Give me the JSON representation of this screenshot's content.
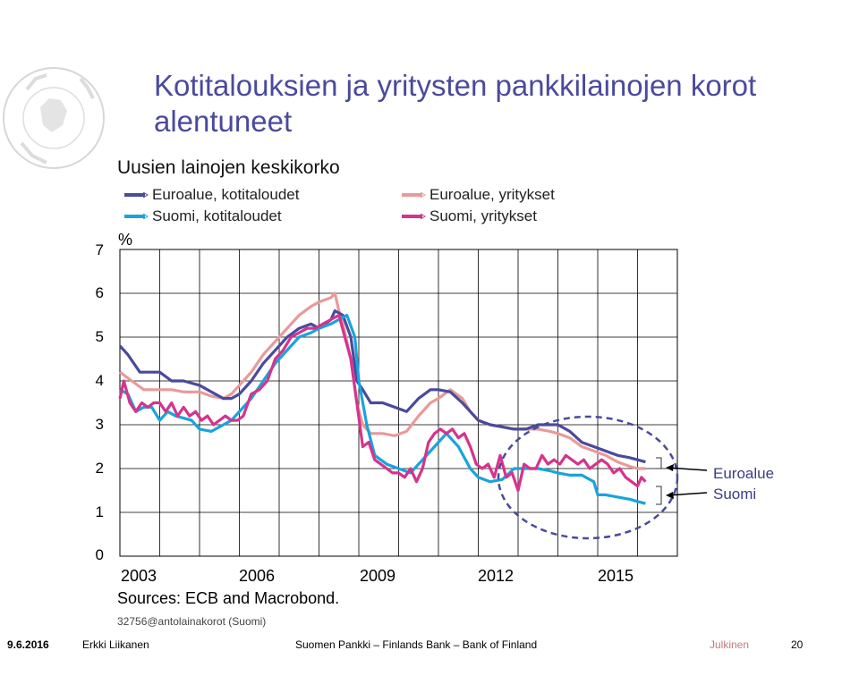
{
  "slide": {
    "title": "Kotitalouksien ja yritysten pankkilainojen korot alentuneet",
    "subtitle": "Uusien lainojen keskikorko",
    "unit": "%",
    "sources": "Sources: ECB and Macrobond.",
    "code": "32756@antolainakorot (Suomi)",
    "right_labels": [
      "Euroalue",
      "Suomi"
    ]
  },
  "footer": {
    "date": "9.6.2016",
    "author": "Erkki Liikanen",
    "org": "Suomen Pankki – Finlands Bank – Bank of Finland",
    "classification": "Julkinen",
    "page": "20"
  },
  "colors": {
    "title": "#4a4a9c",
    "euro_households": "#4a4a9c",
    "fin_households": "#1aa3dc",
    "euro_companies": "#e89a9a",
    "fin_companies": "#d6338c",
    "classification": "#c07b7b",
    "ellipse": "#4a4a9c"
  },
  "chart_data": {
    "type": "line",
    "title": "Uusien lainojen keskikorko",
    "ylabel": "%",
    "ylim": [
      0,
      7
    ],
    "yticks": [
      0,
      1,
      2,
      3,
      4,
      5,
      6,
      7
    ],
    "xlim": [
      2003.0,
      2017.0
    ],
    "xticks": [
      2003,
      2006,
      2009,
      2012,
      2015
    ],
    "grid": true,
    "legend_position": "top",
    "series": [
      {
        "name": "Euroalue, kotitaloudet",
        "color_key": "euro_households",
        "x": [
          2003.0,
          2003.2,
          2003.5,
          2003.7,
          2004.0,
          2004.3,
          2004.6,
          2005.0,
          2005.3,
          2005.6,
          2005.8,
          2006.0,
          2006.3,
          2006.6,
          2006.9,
          2007.2,
          2007.5,
          2007.8,
          2008.0,
          2008.3,
          2008.4,
          2008.6,
          2008.8,
          2008.95,
          2009.1,
          2009.3,
          2009.6,
          2009.9,
          2010.2,
          2010.5,
          2010.8,
          2011.0,
          2011.3,
          2011.6,
          2011.8,
          2012.0,
          2012.3,
          2012.6,
          2012.9,
          2013.2,
          2013.5,
          2013.8,
          2014.0,
          2014.3,
          2014.6,
          2014.9,
          2015.2,
          2015.5,
          2015.8,
          2016.0,
          2016.2
        ],
        "y": [
          4.8,
          4.6,
          4.2,
          4.2,
          4.2,
          4.0,
          4.0,
          3.9,
          3.75,
          3.6,
          3.6,
          3.7,
          4.0,
          4.4,
          4.7,
          5.0,
          5.2,
          5.3,
          5.2,
          5.4,
          5.6,
          5.5,
          5.0,
          4.0,
          3.8,
          3.5,
          3.5,
          3.4,
          3.3,
          3.6,
          3.8,
          3.8,
          3.75,
          3.5,
          3.3,
          3.1,
          3.0,
          2.95,
          2.9,
          2.9,
          3.0,
          3.0,
          3.0,
          2.85,
          2.6,
          2.5,
          2.4,
          2.3,
          2.25,
          2.2,
          2.15
        ]
      },
      {
        "name": "Euroalue, yritykset",
        "color_key": "euro_companies",
        "x": [
          2003.0,
          2003.3,
          2003.6,
          2004.0,
          2004.3,
          2004.6,
          2005.0,
          2005.3,
          2005.6,
          2005.8,
          2006.0,
          2006.3,
          2006.6,
          2006.9,
          2007.2,
          2007.5,
          2007.8,
          2008.0,
          2008.3,
          2008.4,
          2008.5,
          2008.6,
          2008.8,
          2008.95,
          2009.1,
          2009.3,
          2009.6,
          2009.9,
          2010.2,
          2010.5,
          2010.8,
          2011.0,
          2011.3,
          2011.6,
          2011.8,
          2012.0,
          2012.3,
          2012.6,
          2012.9,
          2013.2,
          2013.5,
          2013.8,
          2014.0,
          2014.3,
          2014.6,
          2014.9,
          2015.2,
          2015.5,
          2015.8,
          2016.0,
          2016.2
        ],
        "y": [
          4.2,
          4.0,
          3.8,
          3.8,
          3.8,
          3.75,
          3.75,
          3.65,
          3.6,
          3.7,
          3.9,
          4.2,
          4.6,
          4.9,
          5.2,
          5.5,
          5.7,
          5.8,
          5.9,
          6.0,
          5.6,
          5.3,
          4.5,
          3.5,
          3.0,
          2.8,
          2.8,
          2.75,
          2.85,
          3.2,
          3.5,
          3.6,
          3.8,
          3.6,
          3.3,
          3.1,
          3.0,
          2.95,
          2.9,
          2.9,
          2.9,
          2.85,
          2.8,
          2.7,
          2.5,
          2.4,
          2.3,
          2.15,
          2.05,
          2.0,
          2.0
        ]
      },
      {
        "name": "Suomi, kotitaloudet",
        "color_key": "fin_households",
        "x": [
          2003.0,
          2003.2,
          2003.4,
          2003.6,
          2003.8,
          2004.0,
          2004.2,
          2004.4,
          2004.6,
          2004.8,
          2005.0,
          2005.3,
          2005.6,
          2005.8,
          2006.0,
          2006.3,
          2006.6,
          2006.9,
          2007.2,
          2007.5,
          2007.8,
          2008.0,
          2008.3,
          2008.5,
          2008.7,
          2008.9,
          2009.0,
          2009.2,
          2009.4,
          2009.7,
          2010.0,
          2010.3,
          2010.6,
          2010.9,
          2011.2,
          2011.5,
          2011.8,
          2012.0,
          2012.3,
          2012.6,
          2012.9,
          2013.2,
          2013.5,
          2013.8,
          2014.0,
          2014.3,
          2014.6,
          2014.9,
          2015.0,
          2015.2,
          2015.5,
          2015.8,
          2016.0,
          2016.2
        ],
        "y": [
          3.8,
          3.7,
          3.3,
          3.4,
          3.4,
          3.1,
          3.3,
          3.2,
          3.15,
          3.1,
          2.9,
          2.85,
          3.0,
          3.1,
          3.3,
          3.6,
          4.0,
          4.4,
          4.7,
          5.0,
          5.1,
          5.2,
          5.3,
          5.4,
          5.5,
          5.0,
          4.0,
          3.0,
          2.3,
          2.1,
          2.0,
          1.9,
          2.2,
          2.5,
          2.8,
          2.5,
          2.0,
          1.8,
          1.7,
          1.75,
          2.0,
          2.0,
          2.0,
          1.95,
          1.9,
          1.85,
          1.85,
          1.7,
          1.4,
          1.4,
          1.35,
          1.3,
          1.25,
          1.2
        ]
      },
      {
        "name": "Suomi, yritykset",
        "color_key": "fin_companies",
        "x": [
          2003.0,
          2003.1,
          2003.25,
          2003.4,
          2003.55,
          2003.7,
          2003.85,
          2004.0,
          2004.15,
          2004.3,
          2004.45,
          2004.6,
          2004.75,
          2004.9,
          2005.05,
          2005.2,
          2005.35,
          2005.5,
          2005.65,
          2005.8,
          2005.95,
          2006.1,
          2006.3,
          2006.5,
          2006.7,
          2006.9,
          2007.1,
          2007.3,
          2007.5,
          2007.7,
          2007.9,
          2008.1,
          2008.3,
          2008.5,
          2008.65,
          2008.8,
          2008.95,
          2009.1,
          2009.25,
          2009.4,
          2009.55,
          2009.7,
          2009.85,
          2010.0,
          2010.15,
          2010.3,
          2010.45,
          2010.6,
          2010.75,
          2010.9,
          2011.05,
          2011.2,
          2011.35,
          2011.5,
          2011.65,
          2011.8,
          2011.95,
          2012.1,
          2012.25,
          2012.4,
          2012.55,
          2012.7,
          2012.85,
          2013.0,
          2013.15,
          2013.3,
          2013.45,
          2013.6,
          2013.75,
          2013.9,
          2014.05,
          2014.2,
          2014.35,
          2014.5,
          2014.65,
          2014.8,
          2014.95,
          2015.1,
          2015.25,
          2015.4,
          2015.55,
          2015.7,
          2015.85,
          2016.0,
          2016.1,
          2016.2
        ],
        "y": [
          3.6,
          4.0,
          3.5,
          3.3,
          3.5,
          3.4,
          3.5,
          3.5,
          3.3,
          3.5,
          3.2,
          3.4,
          3.2,
          3.3,
          3.1,
          3.2,
          3.0,
          3.1,
          3.2,
          3.1,
          3.1,
          3.2,
          3.7,
          3.8,
          4.0,
          4.5,
          4.7,
          5.0,
          5.1,
          5.2,
          5.2,
          5.3,
          5.4,
          5.5,
          5.0,
          4.5,
          3.5,
          2.5,
          2.6,
          2.2,
          2.1,
          2.0,
          1.9,
          1.9,
          1.8,
          2.0,
          1.7,
          2.0,
          2.6,
          2.8,
          2.9,
          2.8,
          2.9,
          2.7,
          2.8,
          2.5,
          2.1,
          2.0,
          2.1,
          1.8,
          2.3,
          1.8,
          1.9,
          1.5,
          2.1,
          2.0,
          2.0,
          2.3,
          2.1,
          2.2,
          2.1,
          2.3,
          2.2,
          2.1,
          2.2,
          2.0,
          2.1,
          2.2,
          2.1,
          1.9,
          2.0,
          1.8,
          1.7,
          1.6,
          1.8,
          1.7
        ]
      }
    ]
  }
}
